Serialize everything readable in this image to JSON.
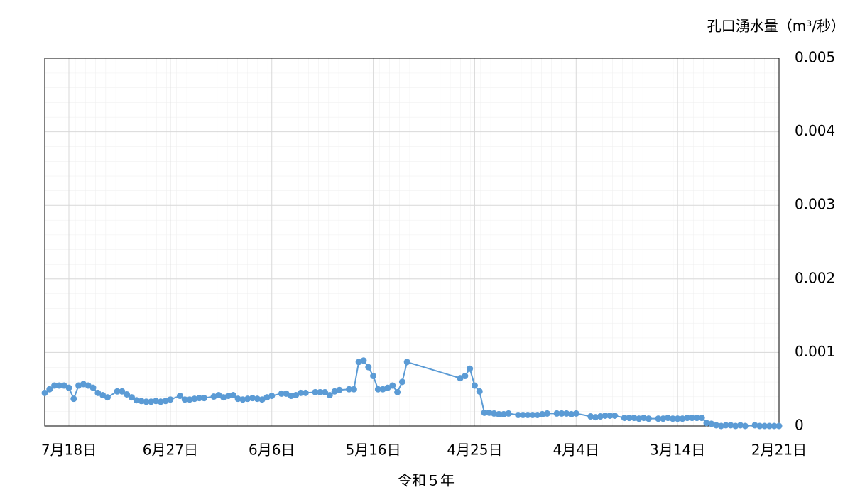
{
  "chart_data": {
    "type": "line",
    "y_label": "孔口湧水量（m³/秒）",
    "x_label": "令和５年",
    "xlim": [
      204,
      52
    ],
    "xticks": [
      {
        "value": 199,
        "label": "7月18日"
      },
      {
        "value": 178,
        "label": "6月27日"
      },
      {
        "value": 157,
        "label": "6月6日"
      },
      {
        "value": 136,
        "label": "5月16日"
      },
      {
        "value": 115,
        "label": "4月25日"
      },
      {
        "value": 94,
        "label": "4月4日"
      },
      {
        "value": 73,
        "label": "3月14日"
      },
      {
        "value": 52,
        "label": "2月21日"
      }
    ],
    "ylim": [
      0,
      0.005
    ],
    "yticks": [
      0,
      0.001,
      0.002,
      0.003,
      0.004,
      0.005
    ],
    "grid": true,
    "y_axis_side": "right",
    "series": [
      {
        "color": "#5b9bd5",
        "x": [
          204,
          203,
          202,
          201,
          200,
          199,
          198,
          197,
          196,
          195,
          194,
          193,
          192,
          191,
          189,
          188,
          187,
          186,
          185,
          184,
          183,
          182,
          181,
          180,
          179,
          178,
          176,
          175,
          174,
          173,
          172,
          171,
          169,
          168,
          167,
          166,
          165,
          164,
          163,
          162,
          161,
          160,
          159,
          158,
          157,
          155,
          154,
          153,
          152,
          151,
          150,
          148,
          147,
          146,
          145,
          144,
          143,
          141,
          140,
          139,
          138,
          137,
          136,
          135,
          134,
          133,
          132,
          131,
          130,
          129,
          118,
          117,
          116,
          115,
          114,
          113,
          112,
          111,
          110,
          109,
          108,
          106,
          105,
          104,
          103,
          102,
          101,
          100,
          98,
          97,
          96,
          95,
          94,
          91,
          90,
          89,
          88,
          87,
          86,
          84,
          83,
          82,
          81,
          80,
          79,
          77,
          76,
          75,
          74,
          73,
          72,
          71,
          70,
          69,
          68,
          67,
          66,
          65,
          64,
          63,
          62,
          61,
          60,
          59,
          57,
          56,
          55,
          54,
          53,
          52
        ],
        "values": [
          0.00045,
          0.0005,
          0.00055,
          0.00055,
          0.00055,
          0.00052,
          0.00037,
          0.00055,
          0.00057,
          0.00055,
          0.00052,
          0.00045,
          0.00042,
          0.00039,
          0.00047,
          0.00047,
          0.00043,
          0.00039,
          0.00035,
          0.00034,
          0.00033,
          0.00033,
          0.00034,
          0.00033,
          0.00034,
          0.00036,
          0.00041,
          0.00036,
          0.00036,
          0.00037,
          0.00038,
          0.00038,
          0.0004,
          0.00042,
          0.00039,
          0.00041,
          0.00042,
          0.00037,
          0.00036,
          0.00037,
          0.00038,
          0.00037,
          0.00036,
          0.00039,
          0.00041,
          0.00044,
          0.00044,
          0.00041,
          0.00042,
          0.00045,
          0.00045,
          0.00046,
          0.00046,
          0.00046,
          0.00042,
          0.00047,
          0.00049,
          0.0005,
          0.0005,
          0.00087,
          0.00089,
          0.0008,
          0.00068,
          0.0005,
          0.0005,
          0.00052,
          0.00055,
          0.00046,
          0.0006,
          0.00087,
          0.00065,
          0.00068,
          0.00078,
          0.00055,
          0.00047,
          0.00018,
          0.00018,
          0.00017,
          0.00016,
          0.00016,
          0.00017,
          0.00015,
          0.00015,
          0.00015,
          0.00015,
          0.00015,
          0.00016,
          0.00017,
          0.00017,
          0.00017,
          0.00017,
          0.00016,
          0.00017,
          0.00013,
          0.00012,
          0.00013,
          0.00014,
          0.00014,
          0.00014,
          0.00011,
          0.00011,
          0.00011,
          0.0001,
          0.00011,
          0.0001,
          0.0001,
          0.0001,
          0.00011,
          0.0001,
          0.0001,
          0.0001,
          0.00011,
          0.00011,
          0.00011,
          0.00011,
          4e-05,
          3e-05,
          1e-05,
          0,
          1e-05,
          1e-05,
          0,
          1e-05,
          0,
          1e-05,
          0,
          0,
          0,
          0,
          0
        ]
      }
    ]
  }
}
